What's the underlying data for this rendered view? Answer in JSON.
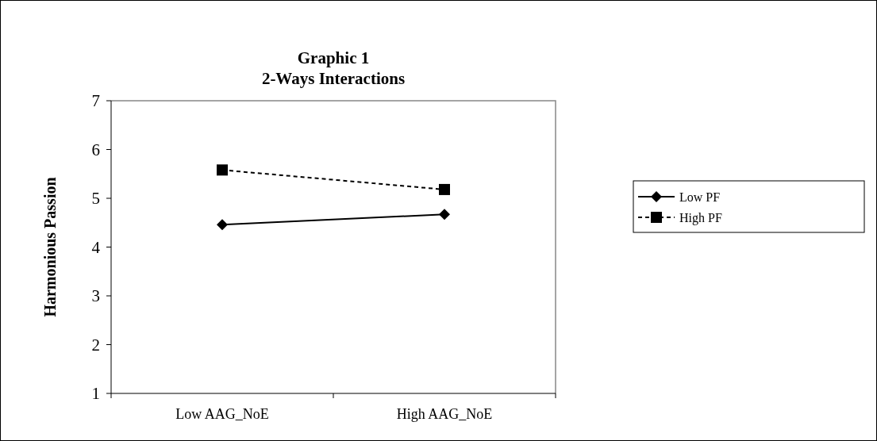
{
  "chart_data": {
    "type": "line",
    "title": "Graphic 1",
    "subtitle": "2-Ways Interactions",
    "ylabel": "Harmonious Passion",
    "categories": [
      "Low AAG_NoE",
      "High AAG_NoE"
    ],
    "series": [
      {
        "name": "Low PF",
        "color": "#000000",
        "values": [
          4.46,
          4.67
        ],
        "marker": "diamond",
        "line_style": "solid"
      },
      {
        "name": "High PF",
        "color": "#000000",
        "values": [
          5.58,
          5.18
        ],
        "marker": "square",
        "line_style": "dashed"
      }
    ],
    "ylim": [
      1,
      7
    ],
    "yticks": [
      1,
      2,
      3,
      4,
      5,
      6,
      7
    ],
    "grid": false,
    "legend": "right"
  }
}
